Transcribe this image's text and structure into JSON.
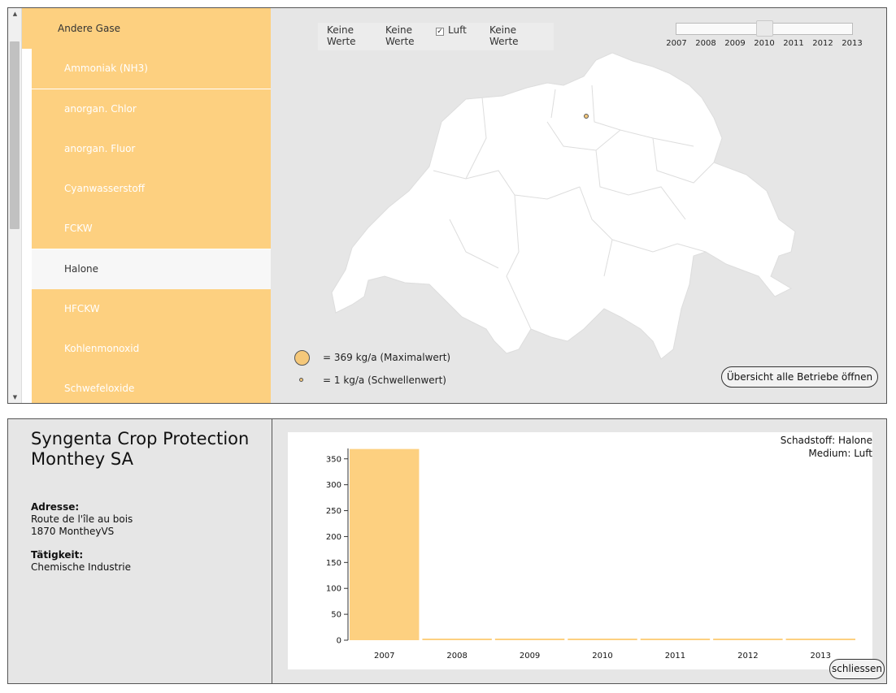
{
  "sidebar": {
    "header": "Andere Gase",
    "items": [
      {
        "label": "Ammoniak (NH3)",
        "selected": false
      },
      {
        "label": "anorgan. Chlor",
        "selected": false
      },
      {
        "label": "anorgan. Fluor",
        "selected": false
      },
      {
        "label": "Cyanwasserstoff",
        "selected": false
      },
      {
        "label": "FCKW",
        "selected": false
      },
      {
        "label": "Halone",
        "selected": true
      },
      {
        "label": "HFCKW",
        "selected": false
      },
      {
        "label": "Kohlenmonoxid",
        "selected": false
      },
      {
        "label": "Schwefeloxide",
        "selected": false
      }
    ]
  },
  "media": {
    "wasser_line1": "Keine",
    "wasser_line2": "Werte",
    "boden_line1": "Keine",
    "boden_line2": "Werte",
    "luft_label": "Luft",
    "luft_checked": true,
    "abfall_line1": "Keine",
    "abfall_line2": "Werte"
  },
  "year_slider": {
    "years": [
      "2007",
      "2008",
      "2009",
      "2010",
      "2011",
      "2012",
      "2013"
    ],
    "selected": "2010"
  },
  "map_legend": {
    "max_text": "= 369 kg/a (Maximalwert)",
    "min_text": "= 1 kg/a (Schwellenwert)",
    "marker_color": "#f5c87a"
  },
  "overview_button": "Übersicht alle Betriebe öffnen",
  "facility": {
    "name": "Syngenta Crop Protection Monthey SA",
    "address_label": "Adresse:",
    "address_line1": "Route de l'île au bois",
    "address_line2": "1870 MontheyVS",
    "activity_label": "Tätigkeit:",
    "activity": "Chemische Industrie"
  },
  "chart_meta": {
    "pollutant": "Schadstoff: Halone",
    "medium": "Medium: Luft"
  },
  "close_button": "schliessen",
  "colors": {
    "accent": "#fdd080",
    "bar": "#fdd080"
  },
  "chart_data": {
    "type": "bar",
    "categories": [
      "2007",
      "2008",
      "2009",
      "2010",
      "2011",
      "2012",
      "2013"
    ],
    "values": [
      369,
      0,
      0,
      0,
      0,
      0,
      0
    ],
    "ylim": [
      0,
      370
    ],
    "yticks": [
      0,
      50,
      100,
      150,
      200,
      250,
      300,
      350
    ],
    "grid": false
  }
}
